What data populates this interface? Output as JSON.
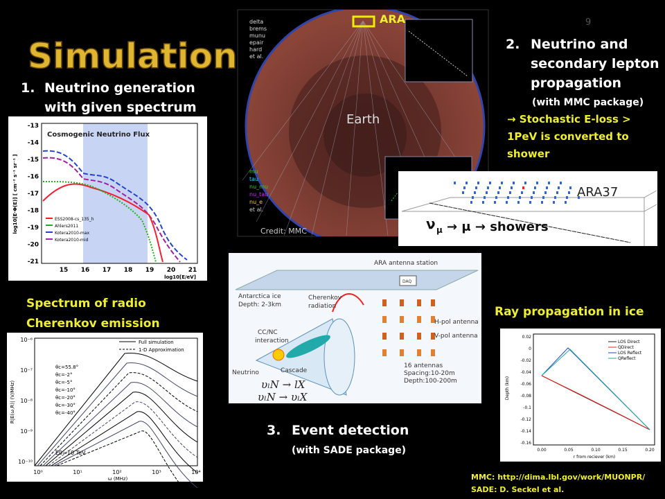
{
  "title": "Simulation",
  "page_number": "9",
  "items": [
    {
      "number": "1.",
      "lines": [
        "Neutrino generation",
        "with given spectrum"
      ]
    },
    {
      "number": "2.",
      "lines": [
        "Neutrino and",
        "secondary lepton",
        "propagation"
      ],
      "sub": "(with MMC package)",
      "note": [
        "→ Stochastic E-loss >",
        "1PeV is converted to",
        "shower"
      ]
    },
    {
      "number": "3.",
      "lines": [
        "Event detection"
      ],
      "sub": "(with SADE package)"
    }
  ],
  "captions": {
    "spectrum": [
      "Spectrum of radio",
      "Cherenkov emission"
    ],
    "ray": "Ray propagation in ice"
  },
  "footer": [
    "MMC: http://dima.lbl.gov/work/MUONPR/",
    "SADE: D. Seckel et al."
  ],
  "earth_figure": {
    "ara": "ARA",
    "earth": "Earth",
    "credit": "Credit: MMC",
    "legend_top": [
      "delta",
      "brems",
      "munu",
      "epair",
      "hard",
      "et al."
    ],
    "legend_bottom": [
      "mu",
      "tau",
      "nu_mu",
      "nu_tau",
      "nu_e",
      "et al."
    ]
  },
  "ara37_figure": {
    "label": "ARA37",
    "nu": "ν",
    "sub": "μ",
    "rest": "→ μ → showers"
  },
  "flux_plot": {
    "title": "Cosmogenic Neutrino Flux",
    "ylabel": "log10[E·Φ(E)] [ cm⁻² s⁻¹ sr⁻¹ ]",
    "xlabel": "log10[E/eV]",
    "yticks": [
      "-13",
      "-14",
      "-15",
      "-16",
      "-17",
      "-18",
      "-19",
      "-20",
      "-21"
    ],
    "xticks": [
      "15",
      "16",
      "17",
      "18",
      "19",
      "20",
      "21"
    ],
    "legend": [
      "ESS2008-cs_135_h",
      "Ahlers2011",
      "Kotera2010-max",
      "Kotera2010-mid"
    ]
  },
  "spectrum_plot": {
    "legend": [
      "Full simulation",
      "1-D Approximation"
    ],
    "angles": [
      "θc=55.8°",
      "θc=-2°",
      "θc=-5°",
      "θc=-10°",
      "θc=-20°",
      "θc=-30°",
      "θc=-40°"
    ],
    "energy": "E0=10 TeV",
    "ylabel": "R|E(ω,R)| (V/MHz)",
    "xlabel": "ω (MHz)",
    "yticks": [
      "10⁻⁶",
      "10⁻⁷",
      "10⁻⁸",
      "10⁻⁹",
      "10⁻¹⁰"
    ],
    "xticks": [
      "10⁰",
      "10¹",
      "10²",
      "10³",
      "10⁴"
    ]
  },
  "detector_figure": {
    "station": "ARA antenna station",
    "daq": "DAQ",
    "ice": [
      "Antarctica ice",
      "Depth: 2-3km"
    ],
    "cherenkov": [
      "Cherenkov",
      "radiation"
    ],
    "interaction": [
      "CC/NC",
      "interaction"
    ],
    "cascade": "Cascade",
    "neutrino": "Neutrino",
    "hpol": "H-pol antenna",
    "vpol": "V-pol antenna",
    "antennas": [
      "16 antennas",
      "Spacing:10-20m",
      "Depth:100-200m"
    ],
    "eq1": "υₗN → lX",
    "eq2": "υₗN → υₗX"
  },
  "ray_plot": {
    "ylabel": "Depth (km)",
    "xlabel": "r from reciever (km)",
    "yticks": [
      "0.02",
      "0",
      "-0.02",
      "-0.04",
      "-0.06",
      "-0.08",
      "-0.1",
      "-0.12",
      "-0.14",
      "-0.16"
    ],
    "xticks": [
      "0.00",
      "0.05",
      "0.10",
      "0.15",
      "0.20"
    ],
    "legend": [
      "LOS Direct",
      "QDirect",
      "LOS Reflect",
      "QReflect"
    ]
  }
}
